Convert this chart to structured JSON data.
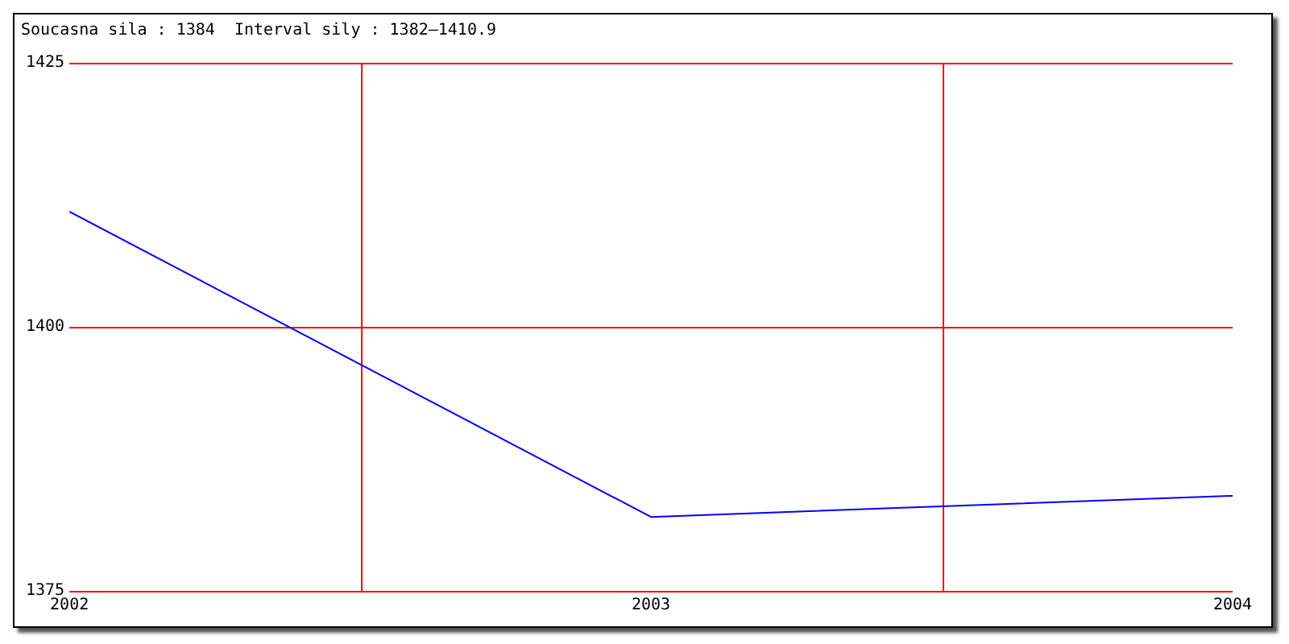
{
  "chart_data": {
    "type": "line",
    "title": "Soucasna sila : 1384  Interval sily : 1382–1410.9",
    "x": [
      2002,
      2003,
      2004
    ],
    "series": [
      {
        "color": "#0000ff",
        "values": [
          1410.9,
          1382,
          1384
        ]
      }
    ],
    "xlim": [
      2002,
      2004
    ],
    "xticks": [
      2002,
      2003,
      2004
    ],
    "ylim": [
      1375,
      1425
    ],
    "yticks": [
      1375,
      1400,
      1425
    ],
    "grid": false,
    "legend": false,
    "marker": "none",
    "line_style": "solid",
    "ref_lines": [
      {
        "axis": "y",
        "value": 1400,
        "color": "#ff0000"
      },
      {
        "axis": "x",
        "value": 2002.5,
        "color": "#ff0000"
      },
      {
        "axis": "x",
        "value": 2003.5,
        "color": "#ff0000"
      }
    ]
  }
}
